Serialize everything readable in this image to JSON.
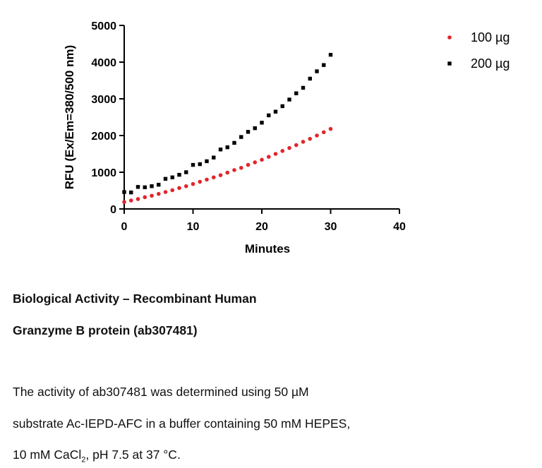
{
  "chart_data": {
    "type": "scatter",
    "xlabel": "Minutes",
    "ylabel": "RFU  (Ex/Em=380/500 nm)",
    "x": [
      0,
      1,
      2,
      3,
      4,
      5,
      6,
      7,
      8,
      9,
      10,
      11,
      12,
      13,
      14,
      15,
      16,
      17,
      18,
      19,
      20,
      21,
      22,
      23,
      24,
      25,
      26,
      27,
      28,
      29,
      30
    ],
    "series": [
      {
        "name": "100 µg",
        "color": "#e0262b",
        "marker": "circle",
        "values": [
          190,
          230,
          270,
          320,
          360,
          410,
          460,
          510,
          570,
          620,
          680,
          740,
          800,
          860,
          920,
          990,
          1060,
          1120,
          1200,
          1270,
          1340,
          1420,
          1500,
          1580,
          1660,
          1740,
          1830,
          1910,
          2000,
          2090,
          2180
        ]
      },
      {
        "name": "200 µg",
        "color": "#000000",
        "marker": "square",
        "values": [
          460,
          450,
          600,
          590,
          620,
          660,
          820,
          860,
          930,
          1000,
          1200,
          1220,
          1300,
          1400,
          1620,
          1680,
          1800,
          1960,
          2100,
          2200,
          2350,
          2550,
          2650,
          2800,
          2980,
          3150,
          3300,
          3550,
          3750,
          3920,
          4200
        ]
      }
    ],
    "xlim": [
      0,
      40
    ],
    "xticks": [
      0,
      10,
      20,
      30,
      40
    ],
    "ylim": [
      0,
      5000
    ],
    "yticks": [
      0,
      1000,
      2000,
      3000,
      4000,
      5000
    ],
    "legend": "right"
  },
  "caption": {
    "title_lines": [
      "Biological Activity – Recombinant Human",
      "Granzyme B protein (ab307481)"
    ],
    "body_lines": [
      "The activity of ab307481 was determined using 50 µM",
      "substrate Ac-IEPD-AFC in a buffer containing 50 mM HEPES,"
    ],
    "last_line": {
      "before": "10 mM CaCl",
      "sub": "2",
      "after": ", pH 7.5 at 37 °C."
    }
  }
}
